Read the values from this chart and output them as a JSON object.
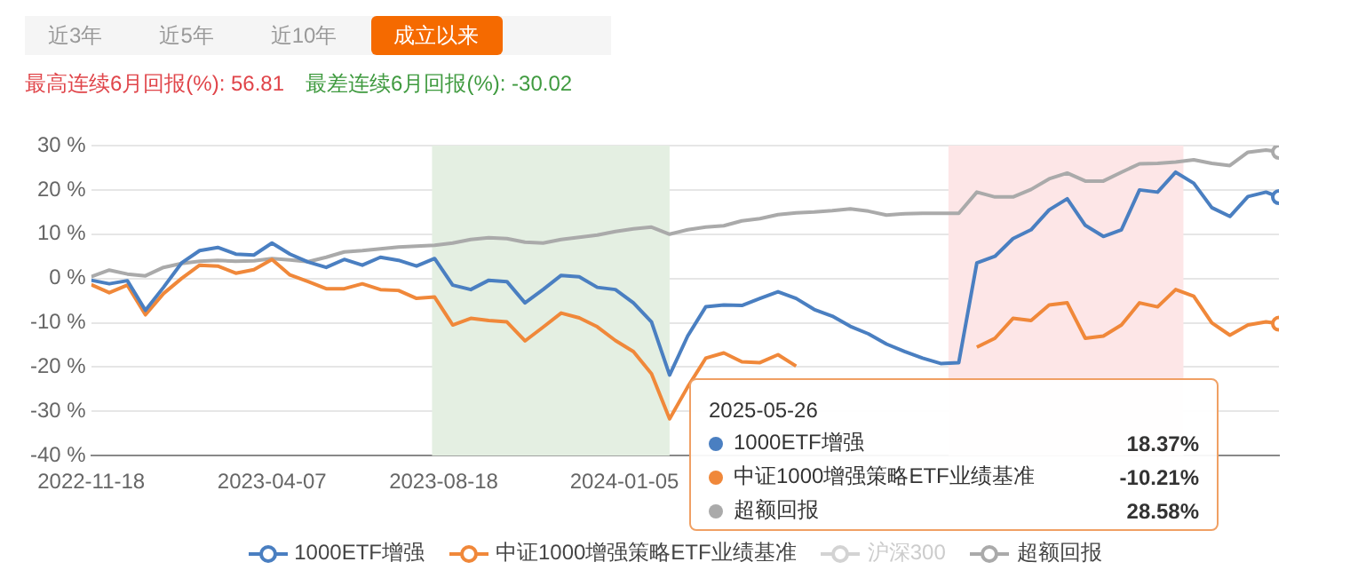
{
  "chart_data": {
    "type": "line",
    "annotations": [
      "近3年",
      "近5年",
      "近10年",
      "成立以来",
      "最高连续6月回报(%): 56.81",
      "最差连续6月回报(%): -30.02",
      "2025-05-26",
      "18.37%",
      "-10.21%",
      "28.58%"
    ],
    "x": [
      "2022-11-18",
      "2022-12-02",
      "2022-12-16",
      "2022-12-30",
      "2023-01-13",
      "2023-01-27",
      "2023-02-10",
      "2023-02-24",
      "2023-03-10",
      "2023-03-24",
      "2023-04-07",
      "2023-04-21",
      "2023-05-05",
      "2023-05-19",
      "2023-06-02",
      "2023-06-16",
      "2023-06-30",
      "2023-07-14",
      "2023-07-28",
      "2023-08-11",
      "2023-08-25",
      "2023-09-08",
      "2023-09-22",
      "2023-10-06",
      "2023-10-20",
      "2023-11-03",
      "2023-11-17",
      "2023-12-01",
      "2023-12-15",
      "2023-12-29",
      "2024-01-12",
      "2024-01-26",
      "2024-02-09",
      "2024-02-23",
      "2024-03-08",
      "2024-03-22",
      "2024-04-05",
      "2024-04-19",
      "2024-05-03",
      "2024-05-17",
      "2024-05-31",
      "2024-06-14",
      "2024-06-28",
      "2024-07-12",
      "2024-07-26",
      "2024-08-09",
      "2024-08-23",
      "2024-09-06",
      "2024-09-20",
      "2024-10-04",
      "2024-10-18",
      "2024-11-01",
      "2024-11-15",
      "2024-11-29",
      "2024-12-13",
      "2024-12-27",
      "2025-01-10",
      "2025-01-24",
      "2025-02-07",
      "2025-02-21",
      "2025-03-07",
      "2025-03-21",
      "2025-04-04",
      "2025-04-18",
      "2025-05-02",
      "2025-05-16",
      "2025-05-26"
    ],
    "series": [
      {
        "name": "1000ETF增强",
        "color": "#4a7fc1",
        "values": [
          -0.4,
          -1.2,
          -0.5,
          -7.2,
          -2.0,
          3.5,
          6.3,
          7.0,
          5.5,
          5.3,
          8.0,
          5.5,
          3.7,
          2.5,
          4.3,
          3.0,
          4.8,
          4.1,
          2.8,
          4.5,
          -1.5,
          -2.5,
          -0.4,
          -0.7,
          -5.5,
          -2.5,
          0.7,
          0.4,
          -2.0,
          -2.5,
          -5.5,
          -9.8,
          -21.8,
          -13.0,
          -6.4,
          -6.0,
          -6.1,
          -4.5,
          -3.0,
          -4.5,
          -7.0,
          -8.5,
          -10.8,
          -12.5,
          -14.8,
          -16.5,
          -18.0,
          -19.2,
          -19.0,
          3.5,
          5.0,
          9.0,
          11.0,
          15.5,
          18.0,
          12.0,
          9.5,
          11.0,
          20.0,
          19.5,
          24.0,
          21.5,
          16.0,
          14.0,
          18.5,
          19.5,
          18.37
        ]
      },
      {
        "name": "中证1000增强策略ETF业绩基准",
        "color": "#f0883a",
        "values": [
          -1.4,
          -3.2,
          -1.5,
          -8.2,
          -3.4,
          0.0,
          3.0,
          2.8,
          1.2,
          2.0,
          4.3,
          0.8,
          -0.7,
          -2.3,
          -2.3,
          -1.2,
          -2.5,
          -2.7,
          -4.5,
          -4.2,
          -10.5,
          -9.0,
          -9.5,
          -9.8,
          -14.1,
          -11.0,
          -7.8,
          -8.9,
          -10.9,
          -14.0,
          -16.5,
          -21.5,
          -31.7,
          -24.5,
          -18.0,
          -16.8,
          -18.8,
          -19.0,
          -17.2,
          -19.8,
          null,
          null,
          null,
          null,
          null,
          null,
          null,
          null,
          null,
          -15.5,
          -13.5,
          -9.0,
          -9.5,
          -6.0,
          -5.5,
          -13.5,
          -13.0,
          -10.5,
          -5.5,
          -6.4,
          -2.5,
          -4.0,
          -10.0,
          -12.8,
          -10.5,
          -9.8,
          -10.21
        ]
      },
      {
        "name": "沪深300",
        "color": "#d3d3d3",
        "values": [
          null,
          null,
          null,
          null,
          null,
          null,
          null,
          null,
          null,
          null,
          null,
          null,
          null,
          null,
          null,
          null,
          null,
          null,
          null,
          null,
          null,
          null,
          null,
          null,
          null,
          null,
          null,
          null,
          null,
          null,
          null,
          null,
          null,
          null,
          null,
          null,
          null,
          null,
          null,
          null,
          null,
          null,
          null,
          null,
          null,
          null,
          null,
          null,
          null,
          null,
          null,
          null,
          null,
          null,
          null,
          null,
          null,
          null,
          null,
          null,
          null,
          null,
          null,
          null,
          null,
          null,
          null
        ]
      },
      {
        "name": "超额回报",
        "color": "#aaaaaa",
        "values": [
          0.4,
          1.9,
          1.0,
          0.6,
          2.5,
          3.4,
          3.9,
          4.1,
          3.9,
          4.0,
          4.5,
          4.2,
          3.8,
          4.8,
          6.0,
          6.3,
          6.7,
          7.1,
          7.3,
          7.5,
          8.0,
          8.8,
          9.2,
          9.0,
          8.2,
          8.0,
          8.8,
          9.3,
          9.8,
          10.6,
          11.2,
          11.6,
          10.0,
          11.0,
          11.6,
          11.9,
          13.0,
          13.5,
          14.4,
          14.8,
          15.0,
          15.3,
          15.7,
          15.2,
          14.3,
          14.6,
          14.7,
          14.7,
          14.7,
          19.5,
          18.4,
          18.4,
          20.1,
          22.5,
          23.8,
          22.0,
          22.0,
          24.0,
          25.9,
          26.0,
          26.3,
          26.8,
          26.0,
          25.5,
          28.5,
          29.0,
          28.58
        ]
      }
    ],
    "xlim": [
      "2022-11-18",
      "2025-05-26"
    ],
    "xticks": [
      "2022-11-18",
      "2023-04-07",
      "2023-08-18",
      "2024-01-05"
    ],
    "ylim": [
      -40,
      30
    ],
    "yticks": [
      {
        "value": -40,
        "label": "-40 %"
      },
      {
        "value": -30,
        "label": "-30 %"
      },
      {
        "value": -20,
        "label": "-20 %"
      },
      {
        "value": -10,
        "label": "-10 %"
      },
      {
        "value": 0,
        "label": "0 %"
      },
      {
        "value": 10,
        "label": "10 %"
      },
      {
        "value": 20,
        "label": "20 %"
      },
      {
        "value": 30,
        "label": "30 %"
      }
    ],
    "bands": [
      {
        "axis": "x",
        "from": "2023-08-09",
        "to": "2024-02-09",
        "color": "#e4efe2"
      },
      {
        "axis": "x",
        "from": "2024-09-12",
        "to": "2025-03-13",
        "color": "#fde6e7"
      }
    ],
    "grid": "y",
    "legend": "bottom",
    "line_style": "solid"
  }
}
